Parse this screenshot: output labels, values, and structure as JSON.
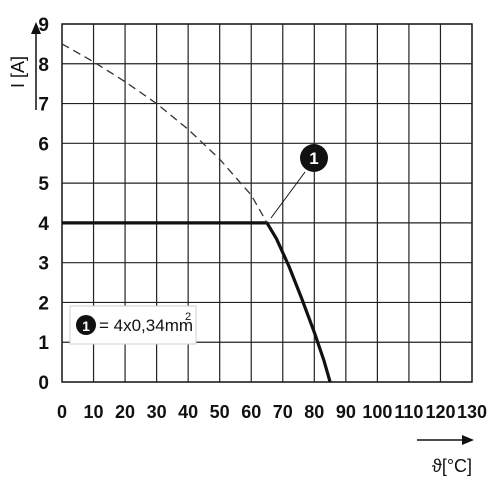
{
  "chart_data": {
    "type": "line",
    "title": "",
    "xlabel": "ϑ[°C]",
    "ylabel": "I [A]",
    "xlim": [
      0,
      130
    ],
    "ylim": [
      0,
      9
    ],
    "x_ticks": [
      0,
      10,
      20,
      30,
      40,
      50,
      60,
      70,
      80,
      90,
      100,
      110,
      120,
      130
    ],
    "y_ticks": [
      0,
      1,
      2,
      3,
      4,
      5,
      6,
      7,
      8,
      9
    ],
    "grid": true,
    "series": [
      {
        "style": "solid-thick",
        "color": "#111111",
        "points": [
          [
            0,
            4.0
          ],
          [
            65,
            4.0
          ],
          [
            68,
            3.6
          ],
          [
            72,
            2.9
          ],
          [
            76,
            2.1
          ],
          [
            80,
            1.25
          ],
          [
            83,
            0.55
          ],
          [
            85,
            0
          ]
        ]
      },
      {
        "style": "dashed",
        "color": "#333333",
        "points": [
          [
            0,
            8.5
          ],
          [
            10,
            8.05
          ],
          [
            20,
            7.55
          ],
          [
            30,
            7.0
          ],
          [
            40,
            6.35
          ],
          [
            50,
            5.6
          ],
          [
            60,
            4.7
          ],
          [
            65,
            4.0
          ]
        ]
      }
    ],
    "annotations": [
      {
        "label": "1",
        "points_to": [
          65,
          4.0
        ]
      }
    ],
    "legend": {
      "marker": "1",
      "text": "= 4x0,34mm",
      "superscript": "2",
      "position": "bottom-left"
    }
  }
}
